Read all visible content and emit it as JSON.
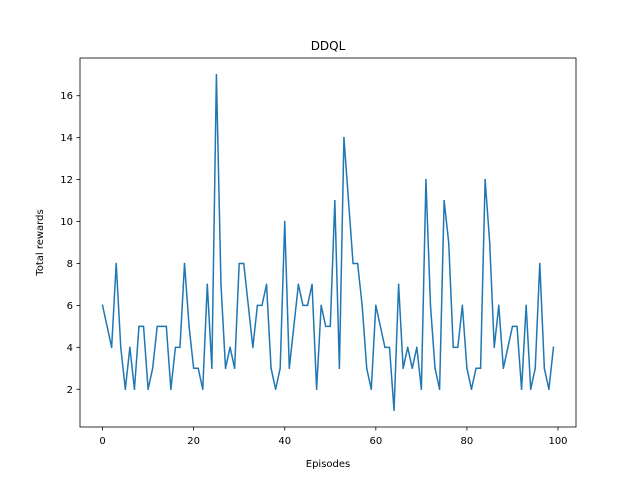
{
  "chart_data": {
    "type": "line",
    "title": "DDQL",
    "xlabel": "Episodes",
    "ylabel": "Total rewards",
    "xlim": [
      -4.95,
      103.95
    ],
    "ylim": [
      0.2,
      17.8
    ],
    "xticks": [
      0,
      20,
      40,
      60,
      80,
      100
    ],
    "yticks": [
      2,
      4,
      6,
      8,
      10,
      12,
      14,
      16
    ],
    "grid": false,
    "line_color": "#1f77b4",
    "series": [
      {
        "x": [
          0,
          1,
          2,
          3,
          4,
          5,
          6,
          7,
          8,
          9,
          10,
          11,
          12,
          13,
          14,
          15,
          16,
          17,
          18,
          19,
          20,
          21,
          22,
          23,
          24,
          25,
          26,
          27,
          28,
          29,
          30,
          31,
          32,
          33,
          34,
          35,
          36,
          37,
          38,
          39,
          40,
          41,
          42,
          43,
          44,
          45,
          46,
          47,
          48,
          49,
          50,
          51,
          52,
          53,
          54,
          55,
          56,
          57,
          58,
          59,
          60,
          61,
          62,
          63,
          64,
          65,
          66,
          67,
          68,
          69,
          70,
          71,
          72,
          73,
          74,
          75,
          76,
          77,
          78,
          79,
          80,
          81,
          82,
          83,
          84,
          85,
          86,
          87,
          88,
          89,
          90,
          91,
          92,
          93,
          94,
          95,
          96,
          97,
          98,
          99
        ],
        "values": [
          6,
          5,
          4,
          8,
          4,
          2,
          4,
          2,
          5,
          5,
          2,
          3,
          5,
          5,
          5,
          2,
          4,
          4,
          8,
          5,
          3,
          3,
          2,
          7,
          3,
          17,
          7,
          3,
          4,
          3,
          8,
          8,
          6,
          4,
          6,
          6,
          7,
          3,
          2,
          3,
          10,
          3,
          5,
          7,
          6,
          6,
          7,
          2,
          6,
          5,
          5,
          11,
          3,
          14,
          11,
          8,
          8,
          6,
          3,
          2,
          6,
          5,
          4,
          4,
          1,
          7,
          3,
          4,
          3,
          4,
          2,
          12,
          6,
          3,
          2,
          11,
          9,
          4,
          4,
          6,
          3,
          2,
          3,
          3,
          12,
          9,
          4,
          6,
          3,
          4,
          5,
          5,
          2,
          6,
          2,
          3,
          8,
          3,
          2,
          4
        ]
      }
    ]
  }
}
